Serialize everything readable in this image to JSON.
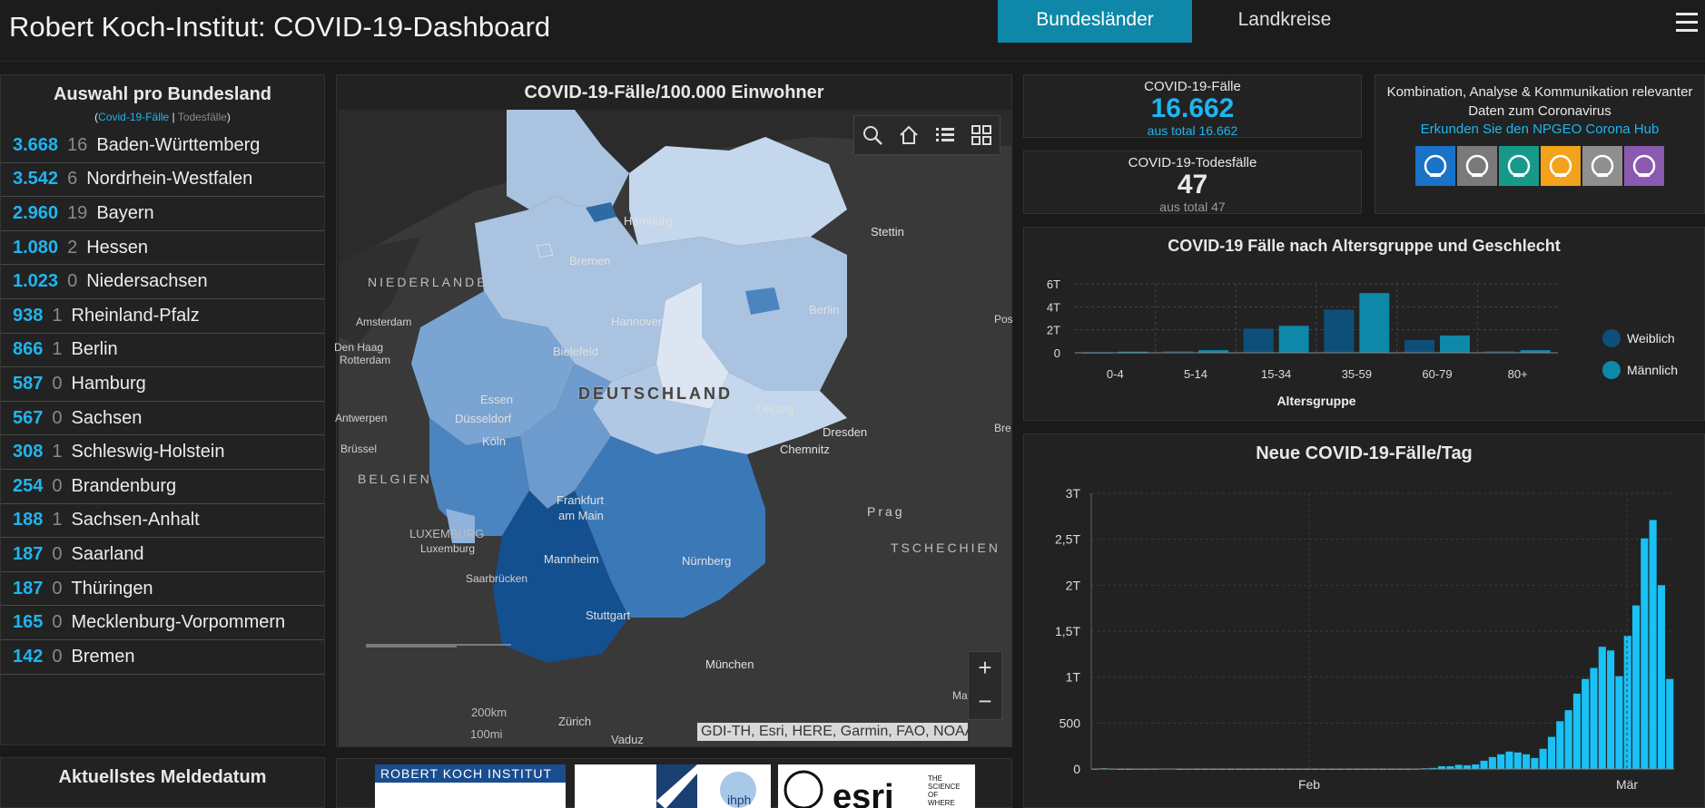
{
  "header": {
    "title": "Robert Koch-Institut: COVID-19-Dashboard",
    "tabs": [
      {
        "label": "Bundesländer"
      },
      {
        "label": "Landkreise"
      }
    ],
    "menu_icon": "hamburger-menu-icon"
  },
  "left_panel": {
    "title": "Auswahl pro Bundesland",
    "subtitle_cases": "Covid-19-Fälle",
    "subtitle_sep": " | ",
    "subtitle_deaths": "Todesfälle",
    "rows": [
      {
        "cases": "3.668",
        "deaths": "16",
        "name": "Baden-Württemberg"
      },
      {
        "cases": "3.542",
        "deaths": "6",
        "name": "Nordrhein-Westfalen"
      },
      {
        "cases": "2.960",
        "deaths": "19",
        "name": "Bayern"
      },
      {
        "cases": "1.080",
        "deaths": "2",
        "name": "Hessen"
      },
      {
        "cases": "1.023",
        "deaths": "0",
        "name": "Niedersachsen"
      },
      {
        "cases": "938",
        "deaths": "1",
        "name": "Rheinland-Pfalz"
      },
      {
        "cases": "866",
        "deaths": "1",
        "name": "Berlin"
      },
      {
        "cases": "587",
        "deaths": "0",
        "name": "Hamburg"
      },
      {
        "cases": "567",
        "deaths": "0",
        "name": "Sachsen"
      },
      {
        "cases": "308",
        "deaths": "1",
        "name": "Schleswig-Holstein"
      },
      {
        "cases": "254",
        "deaths": "0",
        "name": "Brandenburg"
      },
      {
        "cases": "188",
        "deaths": "1",
        "name": "Sachsen-Anhalt"
      },
      {
        "cases": "187",
        "deaths": "0",
        "name": "Saarland"
      },
      {
        "cases": "187",
        "deaths": "0",
        "name": "Thüringen"
      },
      {
        "cases": "165",
        "deaths": "0",
        "name": "Mecklenburg-Vorpommern"
      },
      {
        "cases": "142",
        "deaths": "0",
        "name": "Bremen"
      }
    ],
    "bottom_title": "Aktuellstes Meldedatum"
  },
  "map": {
    "title": "COVID-19-Fälle/100.000 Einwohner",
    "tools": [
      "search-icon",
      "home-icon",
      "legend-list-icon",
      "basemap-grid-icon"
    ],
    "zoom_in": "+",
    "zoom_out": "−",
    "attribution": "GDI-TH, Esri, HERE, Garmin, FAO, NOAA,...",
    "scale_km": "200km",
    "scale_mi": "100mi",
    "labels": {
      "hamburg": "Hamburg",
      "bremen": "Bremen",
      "stettin": "Stettin",
      "berlin": "Berlin",
      "hannover": "Hannover",
      "niederlande": "NIEDERLANDE",
      "amsterdam": "Amsterdam",
      "den_haag": "Den Haag",
      "rotterdam": "Rotterdam",
      "bielefeld": "Bielefeld",
      "deutschland": "DEUTSCHLAND",
      "essen": "Essen",
      "duesseldorf": "Düsseldorf",
      "leipzig": "Leipzig",
      "dresden": "Dresden",
      "koeln": "Köln",
      "chemnitz": "Chemnitz",
      "antwerpen": "Antwerpen",
      "bruessel": "Brüssel",
      "belgien": "BELGIEN",
      "frankfurt": "Frankfurt",
      "am_main": "am Main",
      "prag": "Prag",
      "luxemburg_country": "LUXEMBURG",
      "luxemburg_city": "Luxemburg",
      "mannheim": "Mannheim",
      "nuernberg": "Nürnberg",
      "tschechien": "TSCHECHIEN",
      "saarbruecken": "Saarbrücken",
      "stuttgart": "Stuttgart",
      "muenchen": "München",
      "zuerich": "Zürich",
      "vaduz": "Vaduz",
      "pos": "Pos",
      "bre": "Bre",
      "ma": "Ma"
    }
  },
  "logos": {
    "rki": "ROBERT KOCH INSTITUT",
    "ihph": "ihph",
    "esri": "esri",
    "esri_tag": [
      "THE",
      "SCIENCE",
      "OF",
      "WHERE"
    ]
  },
  "kpi": {
    "cases_label": "COVID-19-Fälle",
    "cases_value": "16.662",
    "cases_sub": "aus total 16.662",
    "deaths_label": "COVID-19-Todesfälle",
    "deaths_value": "47",
    "deaths_sub": "aus total 47"
  },
  "hub": {
    "text_line1": "Kombination, Analyse & Kommunikation relevanter",
    "text_line2": "Daten zum Coronavirus",
    "link": "Erkunden Sie den NPGEO Corona Hub",
    "icons": [
      {
        "name": "plant-hand-icon",
        "color": "#1a73c8"
      },
      {
        "name": "location-buildings-icon",
        "color": "#7a7a7a"
      },
      {
        "name": "heart-pulse-icon",
        "color": "#17998a"
      },
      {
        "name": "map-roads-icon",
        "color": "#f2a21b"
      },
      {
        "name": "car-traffic-icon",
        "color": "#8f8f8f"
      },
      {
        "name": "bell-icon",
        "color": "#8a5ab0"
      }
    ]
  },
  "chart_data": [
    {
      "type": "bar",
      "title": "COVID-19 Fälle nach Altersgruppe und Geschlecht",
      "xlabel": "Altersgruppe",
      "ylabel": "",
      "categories": [
        "0-4",
        "5-14",
        "15-34",
        "35-59",
        "60-79",
        "80+"
      ],
      "series": [
        {
          "name": "Weiblich",
          "color": "#0e4f7a",
          "values": [
            60,
            150,
            2100,
            3750,
            1100,
            150
          ]
        },
        {
          "name": "Männlich",
          "color": "#0e87a8",
          "values": [
            100,
            230,
            2350,
            5200,
            1500,
            230
          ]
        }
      ],
      "yticks": [
        "0",
        "2T",
        "4T",
        "6T"
      ],
      "ylim": [
        0,
        6000
      ],
      "legend": "right",
      "grid": true
    },
    {
      "type": "bar",
      "title": "Neue COVID-19-Fälle/Tag",
      "color": "#19c1f5",
      "x_ticks": [
        "Feb",
        "Mär"
      ],
      "yticks": [
        "0",
        "500",
        "1T",
        "1,5T",
        "2T",
        "2,5T",
        "3T"
      ],
      "ylim": [
        0,
        3000
      ],
      "grid": true,
      "values": [
        2,
        8,
        3,
        0,
        0,
        2,
        1,
        2,
        4,
        4,
        0,
        1,
        0,
        0,
        0,
        0,
        0,
        0,
        0,
        0,
        0,
        0,
        0,
        0,
        0,
        0,
        0,
        0,
        0,
        0,
        0,
        0,
        0,
        0,
        0,
        0,
        0,
        0,
        2,
        8,
        12,
        30,
        30,
        45,
        40,
        50,
        90,
        130,
        160,
        190,
        180,
        160,
        120,
        220,
        350,
        520,
        640,
        820,
        980,
        1100,
        1330,
        1290,
        1010,
        1450,
        1780,
        2510,
        2710,
        2000,
        980
      ]
    }
  ]
}
